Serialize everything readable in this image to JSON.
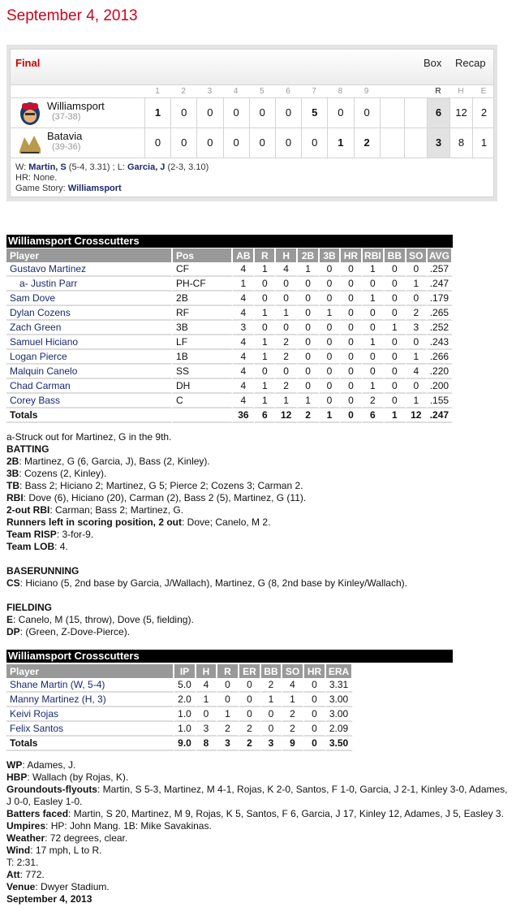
{
  "page_title": "September 4, 2013",
  "linescore": {
    "status": "Final",
    "links": [
      "Box",
      "Recap"
    ],
    "innings": [
      "1",
      "2",
      "3",
      "4",
      "5",
      "6",
      "7",
      "8",
      "9"
    ],
    "totals_headers": [
      "R",
      "H",
      "E"
    ],
    "teams": [
      {
        "name": "Williamsport",
        "record": "(37-38)",
        "logo": "crosscutters-logo",
        "innings": [
          "1",
          "0",
          "0",
          "0",
          "0",
          "0",
          "5",
          "0",
          "0"
        ],
        "R": "6",
        "H": "12",
        "E": "2"
      },
      {
        "name": "Batavia",
        "record": "(39-36)",
        "logo": "muckdogs-logo",
        "innings": [
          "0",
          "0",
          "0",
          "0",
          "0",
          "0",
          "0",
          "1",
          "2"
        ],
        "R": "3",
        "H": "8",
        "E": "1"
      }
    ],
    "footer": {
      "w_label": "W: ",
      "winner": "Martin, S",
      "winner_stats": " (5-4, 3.31) ; L: ",
      "loser": "Garcia, J",
      "loser_stats": " (2-3, 3.10)",
      "hr": "HR: None.",
      "story_label": "Game Story: ",
      "story_link": "Williamsport"
    }
  },
  "batting": {
    "team": "Williamsport Crosscutters",
    "headers": [
      "Player",
      "Pos",
      "AB",
      "R",
      "H",
      "2B",
      "3B",
      "HR",
      "RBI",
      "BB",
      "SO",
      "AVG"
    ],
    "rows": [
      [
        "Gustavo Martinez",
        "CF",
        "4",
        "1",
        "4",
        "1",
        "0",
        "0",
        "1",
        "0",
        "0",
        ".257"
      ],
      [
        "a- Justin Parr",
        "PH-CF",
        "1",
        "0",
        "0",
        "0",
        "0",
        "0",
        "0",
        "0",
        "1",
        ".247"
      ],
      [
        "Sam Dove",
        "2B",
        "4",
        "0",
        "0",
        "0",
        "0",
        "0",
        "1",
        "0",
        "0",
        ".179"
      ],
      [
        "Dylan Cozens",
        "RF",
        "4",
        "1",
        "1",
        "0",
        "1",
        "0",
        "0",
        "0",
        "2",
        ".265"
      ],
      [
        "Zach Green",
        "3B",
        "3",
        "0",
        "0",
        "0",
        "0",
        "0",
        "0",
        "1",
        "3",
        ".252"
      ],
      [
        "Samuel Hiciano",
        "LF",
        "4",
        "1",
        "2",
        "0",
        "0",
        "0",
        "1",
        "0",
        "0",
        ".243"
      ],
      [
        "Logan Pierce",
        "1B",
        "4",
        "1",
        "2",
        "0",
        "0",
        "0",
        "0",
        "0",
        "1",
        ".266"
      ],
      [
        "Malquin Canelo",
        "SS",
        "4",
        "0",
        "0",
        "0",
        "0",
        "0",
        "0",
        "0",
        "4",
        ".220"
      ],
      [
        "Chad Carman",
        "DH",
        "4",
        "1",
        "2",
        "0",
        "0",
        "0",
        "1",
        "0",
        "0",
        ".200"
      ],
      [
        "Corey Bass",
        "C",
        "4",
        "1",
        "1",
        "1",
        "0",
        "0",
        "2",
        "0",
        "1",
        ".155"
      ]
    ],
    "totals": [
      "Totals",
      "",
      "36",
      "6",
      "12",
      "2",
      "1",
      "0",
      "6",
      "1",
      "12",
      ".247"
    ]
  },
  "batting_notes": [
    {
      "label": "",
      "text": "a-Struck out for Martinez, G in the 9th."
    },
    {
      "label": "BATTING",
      "text": ""
    },
    {
      "label": "2B",
      "text": ": Martinez, G (6, Garcia, J), Bass (2, Kinley)."
    },
    {
      "label": "3B",
      "text": ": Cozens (2, Kinley)."
    },
    {
      "label": "TB",
      "text": ": Bass 2; Hiciano 2; Martinez, G 5; Pierce 2; Cozens 3; Carman 2."
    },
    {
      "label": "RBI",
      "text": ": Dove (6), Hiciano (20), Carman (2), Bass 2 (5), Martinez, G (11)."
    },
    {
      "label": "2-out RBI",
      "text": ": Carman; Bass 2; Martinez, G."
    },
    {
      "label": "Runners left in scoring position, 2 out",
      "text": ": Dove; Canelo, M 2."
    },
    {
      "label": "Team RISP",
      "text": ": 3-for-9."
    },
    {
      "label": "Team LOB",
      "text": ": 4."
    },
    null,
    {
      "label": "BASERUNNING",
      "text": ""
    },
    {
      "label": "CS",
      "text": ": Hiciano (5, 2nd base by Garcia, J/Wallach), Martinez, G (8, 2nd base by Kinley/Wallach)."
    },
    null,
    {
      "label": "FIELDING",
      "text": ""
    },
    {
      "label": "E",
      "text": ": Canelo, M (15, throw), Dove (5, fielding)."
    },
    {
      "label": "DP",
      "text": ": (Green, Z-Dove-Pierce)."
    }
  ],
  "pitching": {
    "team": "Williamsport Crosscutters",
    "headers": [
      "Player",
      "IP",
      "H",
      "R",
      "ER",
      "BB",
      "SO",
      "HR",
      "ERA"
    ],
    "rows": [
      [
        "Shane Martin (W, 5-4)",
        "5.0",
        "4",
        "0",
        "0",
        "2",
        "4",
        "0",
        "3.31"
      ],
      [
        "Manny Martinez (H, 3)",
        "2.0",
        "1",
        "0",
        "0",
        "1",
        "1",
        "0",
        "3.00"
      ],
      [
        "Keivi Rojas",
        "1.0",
        "0",
        "1",
        "0",
        "0",
        "2",
        "0",
        "3.00"
      ],
      [
        "Felix Santos",
        "1.0",
        "3",
        "2",
        "2",
        "0",
        "2",
        "0",
        "2.09"
      ]
    ],
    "totals": [
      "Totals",
      "9.0",
      "8",
      "3",
      "2",
      "3",
      "9",
      "0",
      "3.50"
    ]
  },
  "game_notes": [
    {
      "label": "WP",
      "text": ": Adames, J."
    },
    {
      "label": "HBP",
      "text": ": Wallach (by Rojas, K)."
    },
    {
      "label": "Groundouts-flyouts",
      "text": ": Martin, S 5-3, Martinez, M 4-1, Rojas, K 2-0, Santos, F 1-0, Garcia, J 2-1, Kinley 3-0, Adames, J 0-0, Easley 1-0."
    },
    {
      "label": "Batters faced",
      "text": ": Martin, S 20, Martinez, M 9, Rojas, K 5, Santos, F 6, Garcia, J 17, Kinley 12, Adames, J 5, Easley 3."
    },
    {
      "label": "Umpires",
      "text": ": HP: John Mang. 1B: Mike Savakinas."
    },
    {
      "label": "Weather",
      "text": ": 72 degrees, clear."
    },
    {
      "label": "Wind",
      "text": ": 17 mph, L to R."
    },
    {
      "label": "",
      "text": "T: 2:31."
    },
    {
      "label": "Att",
      "text": ": 772."
    },
    {
      "label": "Venue",
      "text": ": Dwyer Stadium."
    },
    {
      "label": "September 4, 2013",
      "text": ""
    }
  ],
  "colors": {
    "title_red": "#d0021b",
    "final_red": "#cc0000",
    "link_navy": "#1a2a6c",
    "header_gray": "#999999"
  }
}
